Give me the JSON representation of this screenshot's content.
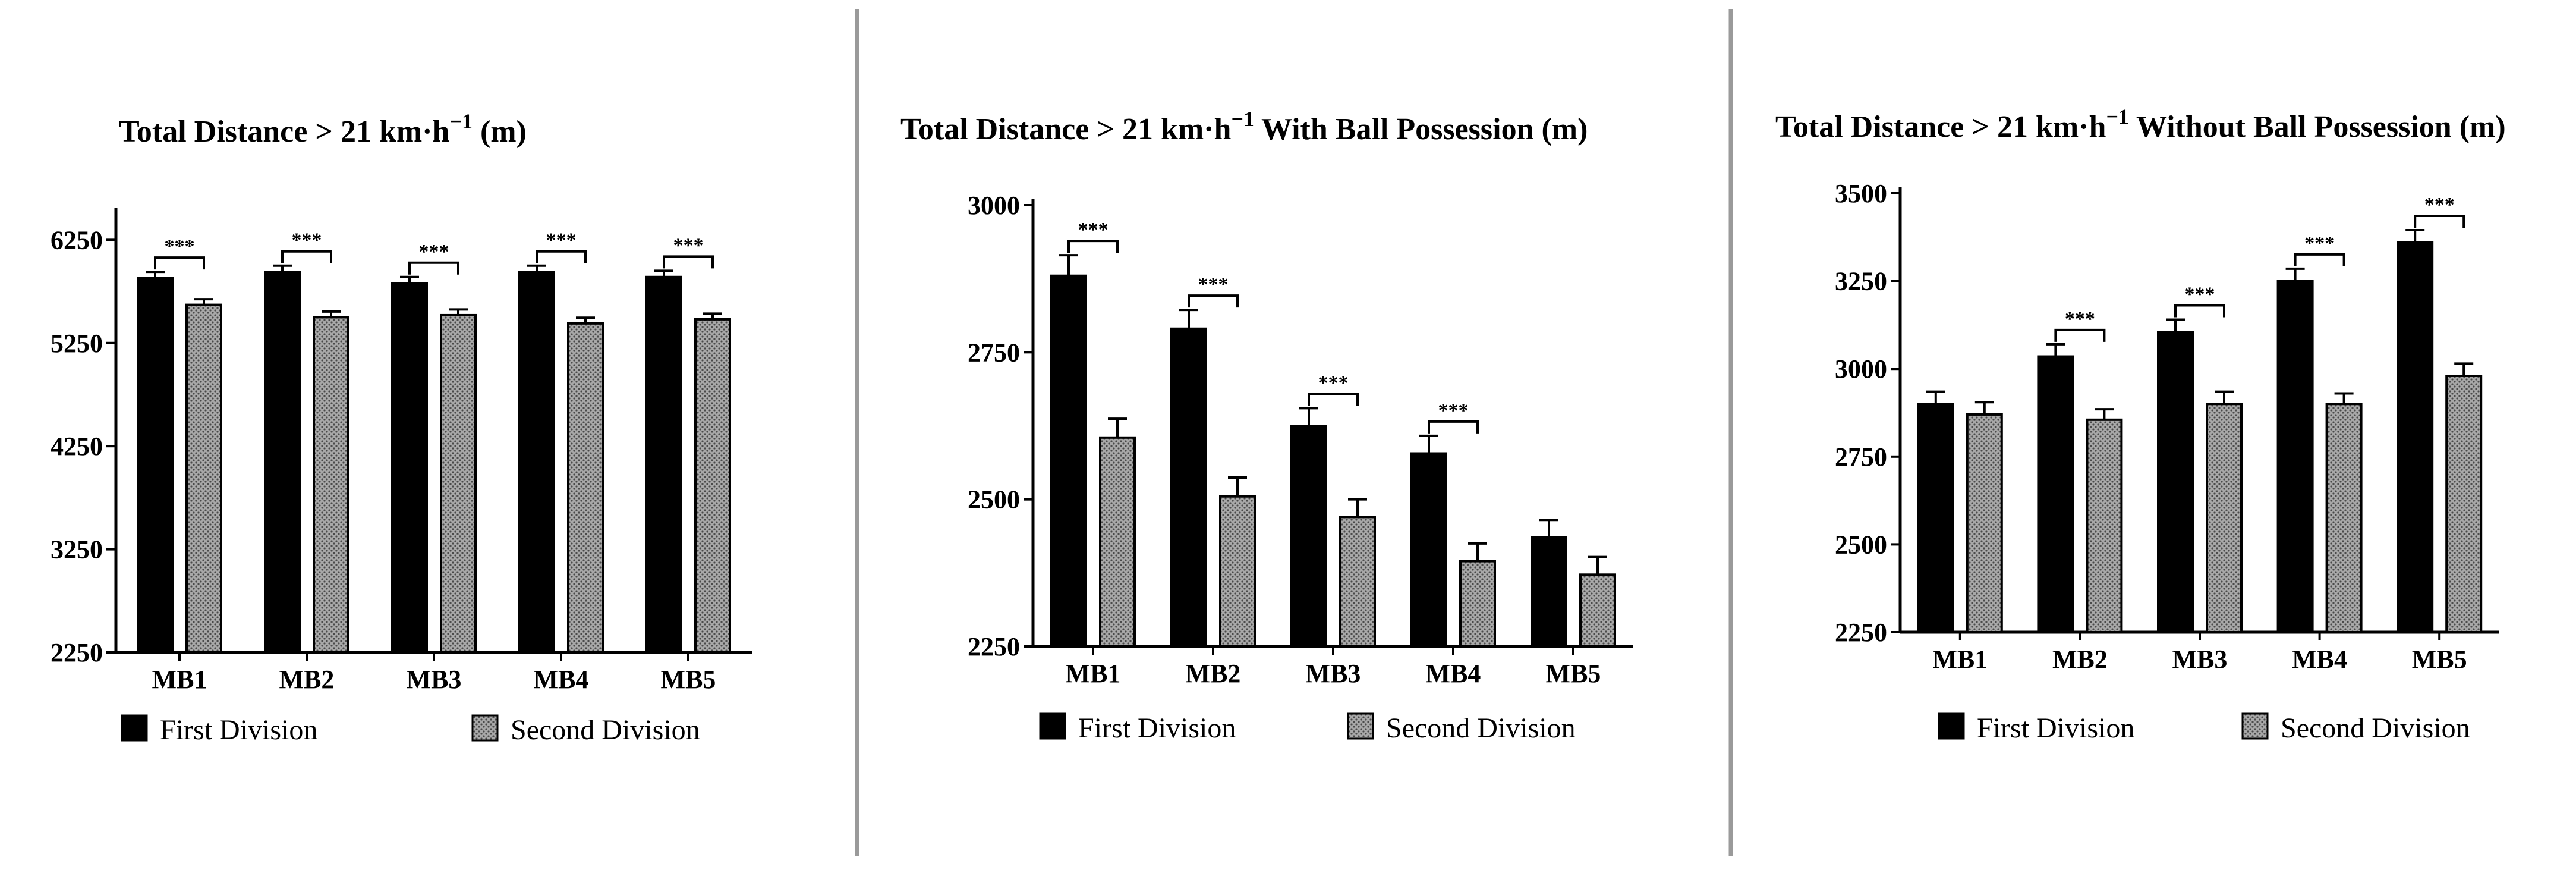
{
  "colors": {
    "first": "#000000",
    "second": "#a8a8a8",
    "separator": "#9a9a9a"
  },
  "legend": {
    "first": "First Division",
    "second": "Second Division"
  },
  "chart_data": [
    {
      "type": "bar",
      "title": "Total Distance  > 21 km·h",
      "title_sup": "−1",
      "title_suffix": "  (m)",
      "categories": [
        "MB1",
        "MB2",
        "MB3",
        "MB4",
        "MB5"
      ],
      "ylim": [
        2250,
        6500
      ],
      "yticks": [
        2250,
        3250,
        4250,
        5250,
        6250
      ],
      "series": [
        {
          "name": "First Division",
          "values": [
            5880,
            5940,
            5830,
            5940,
            5890
          ],
          "errors": [
            60,
            60,
            60,
            60,
            60
          ]
        },
        {
          "name": "Second Division",
          "values": [
            5620,
            5500,
            5520,
            5440,
            5480
          ],
          "errors": [
            55,
            55,
            55,
            55,
            55
          ]
        }
      ],
      "significance": [
        {
          "category": "MB1",
          "label": "***"
        },
        {
          "category": "MB2",
          "label": "***"
        },
        {
          "category": "MB3",
          "label": "***"
        },
        {
          "category": "MB4",
          "label": "***"
        },
        {
          "category": "MB5",
          "label": "***"
        }
      ]
    },
    {
      "type": "bar",
      "title": "Total Distance  > 21 km·h",
      "title_sup": "−1",
      "title_suffix": "  With Ball Possession (m)",
      "categories": [
        "MB1",
        "MB2",
        "MB3",
        "MB4",
        "MB5"
      ],
      "ylim": [
        2250,
        3000
      ],
      "yticks": [
        2250,
        2500,
        2750,
        3000
      ],
      "series": [
        {
          "name": "First Division",
          "values": [
            2880,
            2790,
            2625,
            2578,
            2435
          ],
          "errors": [
            35,
            32,
            30,
            30,
            30
          ]
        },
        {
          "name": "Second Division",
          "values": [
            2605,
            2505,
            2470,
            2395,
            2372
          ],
          "errors": [
            32,
            32,
            30,
            30,
            30
          ]
        }
      ],
      "significance": [
        {
          "category": "MB1",
          "label": "***"
        },
        {
          "category": "MB2",
          "label": "***"
        },
        {
          "category": "MB3",
          "label": "***"
        },
        {
          "category": "MB4",
          "label": "***"
        }
      ]
    },
    {
      "type": "bar",
      "title": "Total Distance  > 21 km·h",
      "title_sup": "−1",
      "title_suffix": "  Without Ball Possession (m)",
      "categories": [
        "MB1",
        "MB2",
        "MB3",
        "MB4",
        "MB5"
      ],
      "ylim": [
        2250,
        3500
      ],
      "yticks": [
        2250,
        2500,
        2750,
        3000,
        3250,
        3500
      ],
      "series": [
        {
          "name": "First Division",
          "values": [
            2900,
            3035,
            3105,
            3250,
            3360
          ],
          "errors": [
            35,
            35,
            35,
            35,
            35
          ]
        },
        {
          "name": "Second Division",
          "values": [
            2870,
            2855,
            2900,
            2900,
            2980
          ],
          "errors": [
            35,
            30,
            35,
            30,
            35
          ]
        }
      ],
      "significance": [
        {
          "category": "MB2",
          "label": "***"
        },
        {
          "category": "MB3",
          "label": "***"
        },
        {
          "category": "MB4",
          "label": "***"
        },
        {
          "category": "MB5",
          "label": "***"
        }
      ]
    }
  ]
}
